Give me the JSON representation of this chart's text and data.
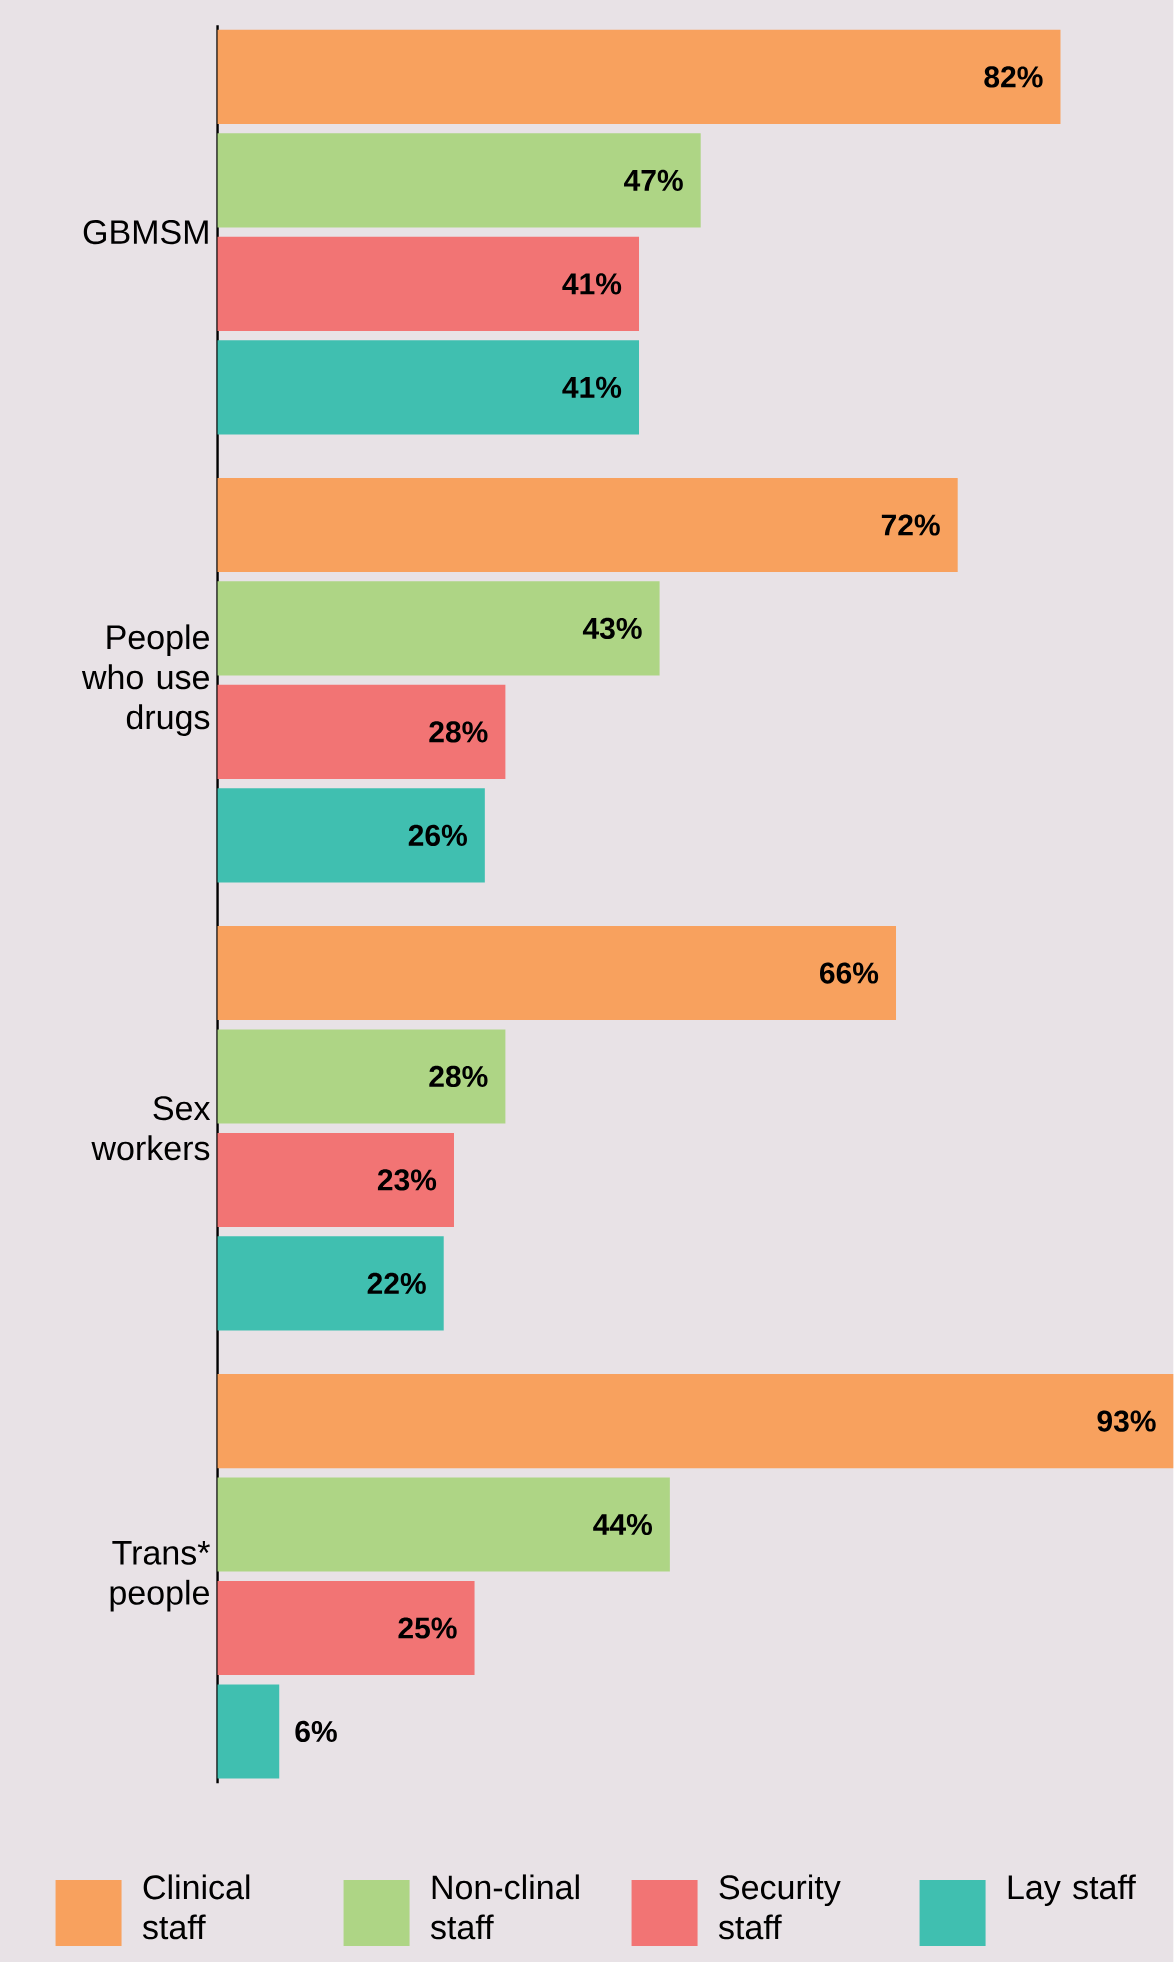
{
  "chart_data": {
    "type": "bar",
    "orientation": "horizontal",
    "legend": "bottom",
    "categories": [
      "GBMSM",
      "People who use drugs",
      "Sex workers",
      "Trans* people"
    ],
    "series": [
      {
        "name": "Clinical staff",
        "color": "#f8a15e",
        "values": [
          82,
          72,
          66,
          93
        ],
        "value_labels": [
          "82%",
          "72%",
          "66%",
          "93%"
        ]
      },
      {
        "name": "Non-clinal staff",
        "color": "#aed585",
        "values": [
          47,
          43,
          28,
          44
        ],
        "value_labels": [
          "47%",
          "43%",
          "28%",
          "44%"
        ]
      },
      {
        "name": "Security staff",
        "color": "#f27474",
        "values": [
          41,
          28,
          23,
          25
        ],
        "value_labels": [
          "41%",
          "28%",
          "23%",
          "25%"
        ]
      },
      {
        "name": "Lay staff",
        "color": "#40bfb0",
        "values": [
          41,
          26,
          22,
          6
        ],
        "value_labels": [
          "41%",
          "26%",
          "22%",
          "6%"
        ]
      }
    ]
  }
}
